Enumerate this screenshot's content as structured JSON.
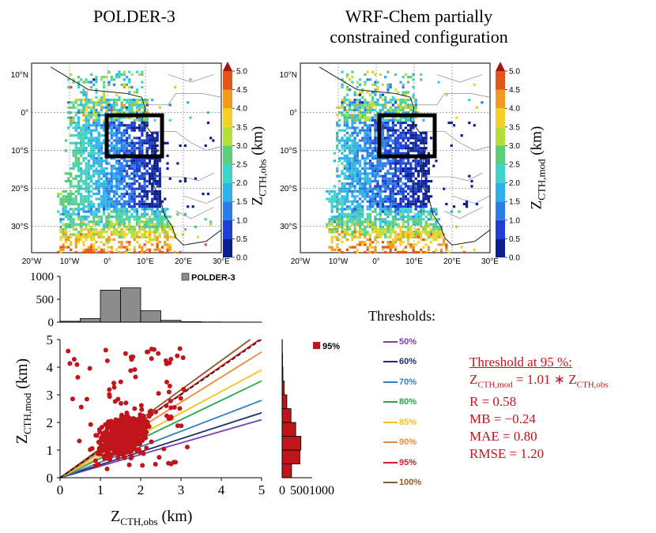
{
  "titles": {
    "left": "POLDER-3",
    "right_line1": "WRF-Chem partially",
    "right_line2": "constrained configuration"
  },
  "maps": {
    "lat_labels": [
      "10°N",
      "0°",
      "10°S",
      "20°S",
      "30°S"
    ],
    "lon_labels": [
      "20°W",
      "10°W",
      "0°",
      "10°E",
      "20°E",
      "30°E"
    ],
    "colorbar_ticks": [
      "0.0",
      "0.5",
      "1.0",
      "1.5",
      "2.0",
      "2.5",
      "3.0",
      "3.5",
      "4.0",
      "4.5",
      "5.0"
    ],
    "colorbar_left_label_main": "Z",
    "colorbar_left_label_sub": "CTH,obs",
    "colorbar_left_label_unit": " (km)",
    "colorbar_right_label_main": "Z",
    "colorbar_right_label_sub": "CTH,mod",
    "colorbar_right_label_unit": " (km)"
  },
  "thresholds": {
    "heading": "Thresholds:",
    "items": [
      {
        "label": "50%",
        "color": "#7b3fb3"
      },
      {
        "label": "60%",
        "color": "#1f2f6b"
      },
      {
        "label": "70%",
        "color": "#2f7fc1"
      },
      {
        "label": "80%",
        "color": "#22a84a"
      },
      {
        "label": "85%",
        "color": "#f2c21a"
      },
      {
        "label": "90%",
        "color": "#f0893a"
      },
      {
        "label": "95%",
        "color": "#d11f2a"
      },
      {
        "label": "100%",
        "color": "#8a5a2b"
      }
    ]
  },
  "stats": {
    "header": "Threshold at 95 %:",
    "eq_main_left": "Z",
    "eq_sub_left": "CTH,mod",
    "eq_middle": " = 1.01 ∗ Z",
    "eq_sub_right": "CTH,obs",
    "r": "R = 0.58",
    "mb": "MB = −0.24",
    "mae": "MAE = 0.80",
    "rmse": "RMSE = 1.20"
  },
  "axes": {
    "x_main": "Z",
    "x_sub": "CTH,obs",
    "x_unit": " (km)",
    "y_main": "Z",
    "y_sub": "CTH,mod",
    "y_unit": " (km)"
  },
  "chart_data": [
    {
      "type": "bar",
      "name": "top-histogram",
      "legend": "POLDER-3",
      "bin_edges": [
        0,
        0.5,
        1.0,
        1.5,
        2.0,
        2.5,
        3.0,
        3.5,
        4.0,
        4.5,
        5.0
      ],
      "values": [
        20,
        80,
        700,
        750,
        250,
        40,
        10,
        5,
        3,
        2
      ],
      "ylim": [
        0,
        1000
      ],
      "yticks": [
        "0",
        "500",
        "1000"
      ],
      "color": "#8c8c8c"
    },
    {
      "type": "bar",
      "orientation": "horizontal",
      "name": "right-histogram",
      "legend": "95%",
      "bin_edges": [
        0,
        0.5,
        1.0,
        1.5,
        2.0,
        2.5,
        3.0,
        3.5,
        4.0,
        4.5,
        5.0
      ],
      "values": [
        180,
        340,
        360,
        260,
        170,
        90,
        40,
        15,
        8,
        4
      ],
      "xlim": [
        0,
        1000
      ],
      "xticks": [
        "0",
        "5001000"
      ],
      "color": "#c0151b"
    },
    {
      "type": "scatter",
      "name": "main-scatter",
      "xlim": [
        0,
        5
      ],
      "ylim": [
        0,
        5
      ],
      "xticks": [
        "0",
        "1",
        "2",
        "3",
        "4",
        "5"
      ],
      "yticks": [
        "0",
        "1",
        "2",
        "3",
        "4",
        "5"
      ],
      "point_color": "#c0151b",
      "threshold_slopes": [
        {
          "label": "50%",
          "slope": 0.42
        },
        {
          "label": "60%",
          "slope": 0.47
        },
        {
          "label": "70%",
          "slope": 0.56
        },
        {
          "label": "80%",
          "slope": 0.7
        },
        {
          "label": "85%",
          "slope": 0.78
        },
        {
          "label": "90%",
          "slope": 0.91
        },
        {
          "label": "95%",
          "slope": 1.01
        },
        {
          "label": "100%",
          "slope": 1.06
        }
      ],
      "one_to_one_line": true
    }
  ]
}
